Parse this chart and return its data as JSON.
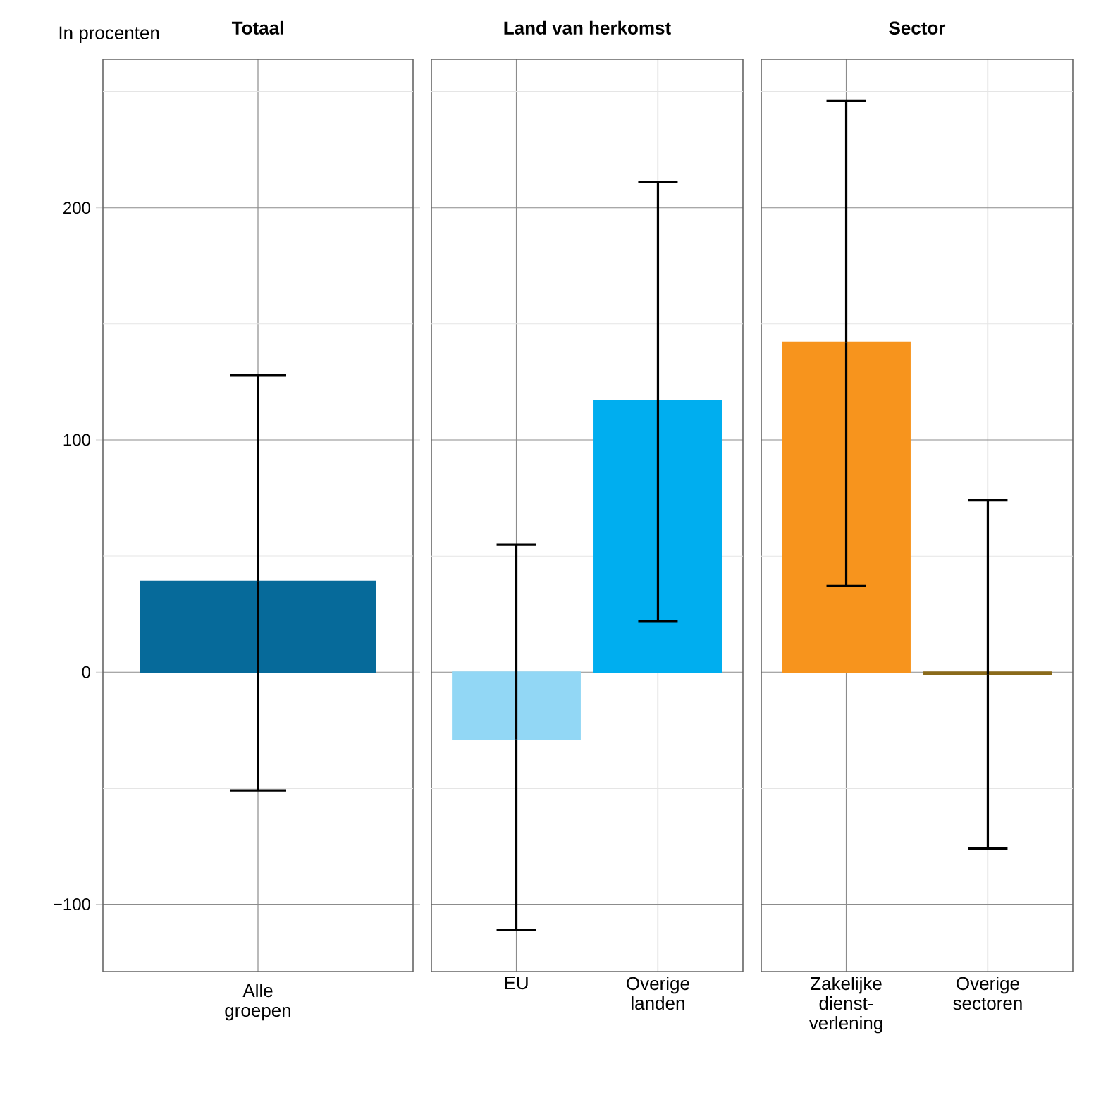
{
  "chart_data": [
    {
      "type": "bar",
      "title": "Totaal",
      "ylabel": "In procenten",
      "categories": [
        "Alle groepen"
      ],
      "values": [
        39
      ],
      "colors": [
        "#066a9a"
      ],
      "errors": [
        [
          -51,
          128
        ]
      ],
      "ylim": [
        -129,
        264
      ],
      "yticks": [
        {
          "value": -100,
          "label": "−100"
        },
        {
          "value": -50,
          "label": null
        },
        0,
        {
          "value": 50,
          "label": null
        },
        100,
        {
          "value": 150,
          "label": null
        },
        200,
        {
          "value": 250,
          "label": null
        }
      ],
      "grid": true
    },
    {
      "type": "bar",
      "title": "Land van herkomst",
      "categories": [
        "EU",
        "Overige landen"
      ],
      "values": [
        -29,
        117
      ],
      "colors": [
        "#92d7f5",
        "#00aeef"
      ],
      "errors": [
        [
          -111,
          55
        ],
        [
          22,
          211
        ]
      ],
      "ylim": [
        -129,
        264
      ],
      "yticks": [
        -100,
        {
          "value": -50,
          "label": null
        },
        0,
        {
          "value": 50,
          "label": null
        },
        100,
        {
          "value": 150,
          "label": null
        },
        200,
        {
          "value": 250,
          "label": null
        }
      ],
      "grid": true,
      "tick_labels": "x"
    },
    {
      "type": "bar",
      "title": "Sector",
      "categories": [
        "Zakelijke dienst-verlening",
        "Overige sectoren"
      ],
      "values": [
        142,
        -1
      ],
      "colors": [
        "#f7941d",
        "#8a6a1a"
      ],
      "errors": [
        [
          37,
          246
        ],
        [
          -76,
          74
        ]
      ],
      "ylim": [
        -129,
        264
      ],
      "yticks": [
        -100,
        {
          "value": -50,
          "label": null
        },
        0,
        {
          "value": 50,
          "label": null
        },
        100,
        {
          "value": 150,
          "label": null
        },
        200,
        {
          "value": 250,
          "label": null
        }
      ],
      "grid": true,
      "tick_labels": "x"
    }
  ]
}
